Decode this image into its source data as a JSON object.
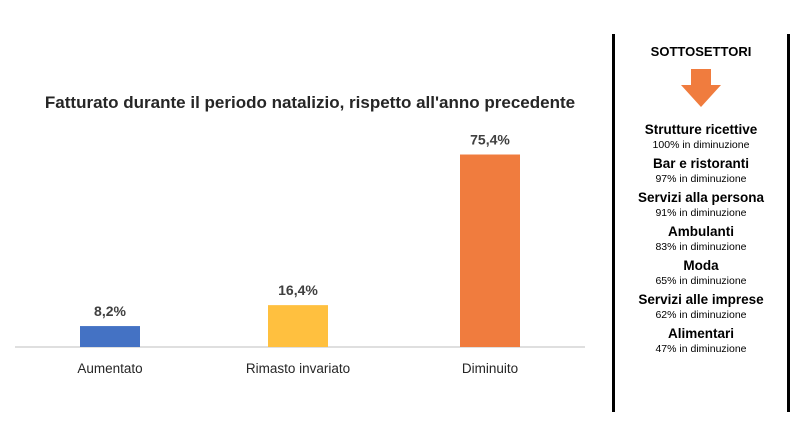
{
  "chart_data": {
    "type": "bar",
    "title": "Fatturato durante il periodo natalizio, rispetto all'anno precedente",
    "categories": [
      "Aumentato",
      "Rimasto invariato",
      "Diminuito"
    ],
    "values": [
      8.2,
      16.4,
      75.4
    ],
    "value_labels": [
      "8,2%",
      "16,4%",
      "75,4%"
    ],
    "colors": [
      "#4472C4",
      "#FFC03F",
      "#F07C3E"
    ],
    "xlabel": "",
    "ylabel": "",
    "ylim": [
      0,
      85
    ],
    "grid": false,
    "legend": "none"
  },
  "sidebar": {
    "title": "SOTTOSETTORI",
    "arrow_color": "#F07C3E",
    "arrow_icon": "arrow-down-icon",
    "items": [
      {
        "name": "Strutture ricettive",
        "value": "100% in diminuzione"
      },
      {
        "name": "Bar e ristoranti",
        "value": "97% in diminuzione"
      },
      {
        "name": "Servizi alla persona",
        "value": "91% in diminuzione"
      },
      {
        "name": "Ambulanti",
        "value": "83% in diminuzione"
      },
      {
        "name": "Moda",
        "value": "65% in diminuzione"
      },
      {
        "name": "Servizi alle imprese",
        "value": "62% in diminuzione"
      },
      {
        "name": "Alimentari",
        "value": "47% in diminuzione"
      }
    ]
  }
}
